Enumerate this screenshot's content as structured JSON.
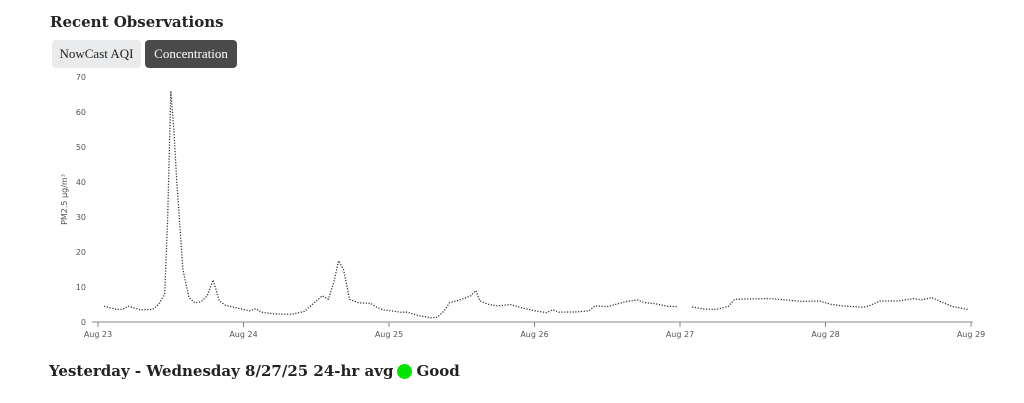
{
  "header": {
    "title": "Recent Observations"
  },
  "tabs": [
    {
      "label": "NowCast AQI",
      "active": false
    },
    {
      "label": "Concentration",
      "active": true
    }
  ],
  "summary": {
    "text": "Yesterday - Wednesday 8/27/25 24-hr avg",
    "category": "Good",
    "category_color": "#00e400"
  },
  "chart_data": {
    "type": "line",
    "ylabel": "PM2.5 µg/m³",
    "ylim": [
      0,
      70
    ],
    "yticks": [
      0,
      10,
      20,
      30,
      40,
      50,
      60,
      70
    ],
    "xlim": [
      "2025-08-23T00:00",
      "2025-08-29T00:00"
    ],
    "xticks": [
      {
        "t": "2025-08-23T00:00",
        "label": "Aug 23"
      },
      {
        "t": "2025-08-24T00:00",
        "label": "Aug 24"
      },
      {
        "t": "2025-08-25T00:00",
        "label": "Aug 25"
      },
      {
        "t": "2025-08-26T00:00",
        "label": "Aug 26"
      },
      {
        "t": "2025-08-27T00:00",
        "label": "Aug 27"
      },
      {
        "t": "2025-08-28T00:00",
        "label": "Aug 28"
      },
      {
        "t": "2025-08-29T00:00",
        "label": "Aug 29"
      }
    ],
    "line_color": "#333333",
    "line_style": "dotted",
    "grid": false,
    "series": [
      {
        "points": [
          [
            "2025-08-23T01:00",
            4.5
          ],
          [
            "2025-08-23T03:00",
            3.6
          ],
          [
            "2025-08-23T04:00",
            3.6
          ],
          [
            "2025-08-23T05:00",
            4.5
          ],
          [
            "2025-08-23T07:00",
            3.5
          ],
          [
            "2025-08-23T09:00",
            3.6
          ],
          [
            "2025-08-23T10:00",
            5
          ],
          [
            "2025-08-23T11:00",
            8
          ],
          [
            "2025-08-23T11:30",
            30
          ],
          [
            "2025-08-23T12:00",
            66
          ],
          [
            "2025-08-23T12:30",
            55
          ],
          [
            "2025-08-23T13:00",
            40
          ],
          [
            "2025-08-23T14:00",
            15
          ],
          [
            "2025-08-23T15:00",
            7
          ],
          [
            "2025-08-23T16:00",
            5.5
          ],
          [
            "2025-08-23T17:00",
            5.8
          ],
          [
            "2025-08-23T18:00",
            7.5
          ],
          [
            "2025-08-23T19:00",
            12
          ],
          [
            "2025-08-23T20:00",
            6
          ],
          [
            "2025-08-23T21:00",
            4.8
          ],
          [
            "2025-08-23T23:00",
            4
          ],
          [
            "2025-08-24T01:00",
            3.2
          ],
          [
            "2025-08-24T02:00",
            3.8
          ],
          [
            "2025-08-24T03:00",
            2.8
          ],
          [
            "2025-08-24T05:00",
            2.3
          ],
          [
            "2025-08-24T08:00",
            2.2
          ],
          [
            "2025-08-24T10:00",
            3
          ],
          [
            "2025-08-24T12:00",
            6
          ],
          [
            "2025-08-24T13:00",
            7.5
          ],
          [
            "2025-08-24T14:00",
            6.5
          ],
          [
            "2025-08-24T15:00",
            12
          ],
          [
            "2025-08-24T15:40",
            17.5
          ],
          [
            "2025-08-24T16:30",
            15
          ],
          [
            "2025-08-24T17:30",
            6.5
          ],
          [
            "2025-08-24T19:00",
            5.5
          ],
          [
            "2025-08-24T21:00",
            5.3
          ],
          [
            "2025-08-24T22:00",
            4.2
          ],
          [
            "2025-08-24T23:00",
            3.5
          ],
          [
            "2025-08-25T02:00",
            2.8
          ],
          [
            "2025-08-25T03:00",
            2.8
          ],
          [
            "2025-08-25T05:00",
            1.8
          ],
          [
            "2025-08-25T07:00",
            1.2
          ],
          [
            "2025-08-25T08:00",
            1.4
          ],
          [
            "2025-08-25T09:00",
            3
          ],
          [
            "2025-08-25T10:00",
            5.5
          ],
          [
            "2025-08-25T12:00",
            6.5
          ],
          [
            "2025-08-25T13:30",
            7.5
          ],
          [
            "2025-08-25T14:20",
            9
          ],
          [
            "2025-08-25T15:00",
            6
          ],
          [
            "2025-08-25T16:30",
            5
          ],
          [
            "2025-08-25T18:00",
            4.6
          ],
          [
            "2025-08-25T20:00",
            5
          ],
          [
            "2025-08-25T22:00",
            4
          ],
          [
            "2025-08-26T00:00",
            3.2
          ],
          [
            "2025-08-26T02:00",
            2.7
          ],
          [
            "2025-08-26T03:00",
            3.5
          ],
          [
            "2025-08-26T04:00",
            2.8
          ],
          [
            "2025-08-26T07:00",
            2.9
          ],
          [
            "2025-08-26T09:00",
            3.2
          ],
          [
            "2025-08-26T10:00",
            4.6
          ],
          [
            "2025-08-26T12:00",
            4.4
          ],
          [
            "2025-08-26T15:00",
            5.8
          ],
          [
            "2025-08-26T17:00",
            6.3
          ],
          [
            "2025-08-26T18:00",
            5.6
          ],
          [
            "2025-08-26T20:00",
            5.2
          ],
          [
            "2025-08-26T22:00",
            4.5
          ],
          [
            "2025-08-26T23:30",
            4.4
          ],
          null,
          [
            "2025-08-27T02:00",
            4.3
          ],
          [
            "2025-08-27T04:00",
            3.7
          ],
          [
            "2025-08-27T06:00",
            3.6
          ],
          [
            "2025-08-27T08:00",
            4.5
          ],
          [
            "2025-08-27T09:00",
            6.5
          ],
          [
            "2025-08-27T12:00",
            6.6
          ],
          [
            "2025-08-27T15:00",
            6.7
          ],
          [
            "2025-08-27T18:00",
            6.2
          ],
          [
            "2025-08-27T20:00",
            5.9
          ],
          [
            "2025-08-27T23:00",
            6
          ],
          [
            "2025-08-28T01:00",
            5
          ],
          [
            "2025-08-28T03:00",
            4.6
          ],
          [
            "2025-08-28T06:00",
            4.2
          ],
          [
            "2025-08-28T07:00",
            4.5
          ],
          [
            "2025-08-28T09:00",
            6
          ],
          [
            "2025-08-28T12:00",
            6
          ],
          [
            "2025-08-28T14:30",
            6.7
          ],
          [
            "2025-08-28T16:00",
            6.3
          ],
          [
            "2025-08-28T17:30",
            7
          ],
          [
            "2025-08-28T19:00",
            5.8
          ],
          [
            "2025-08-28T21:00",
            4.4
          ],
          [
            "2025-08-28T23:30",
            3.6
          ]
        ]
      }
    ]
  }
}
